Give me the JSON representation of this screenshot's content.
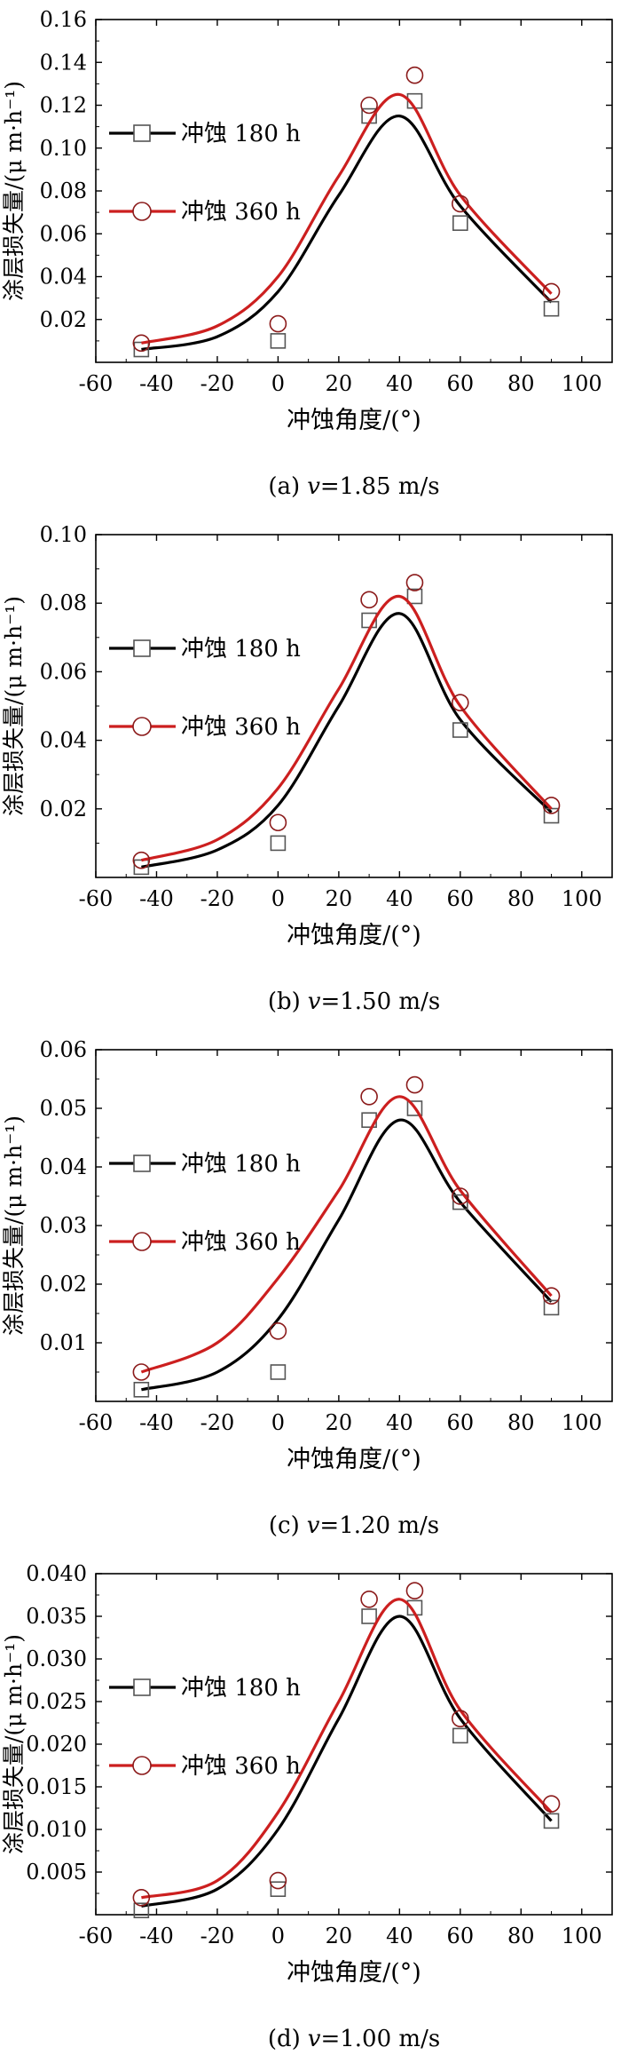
{
  "chart_data": [
    {
      "type": "scatter",
      "caption_prefix": "(a)",
      "caption_v": "v",
      "caption_rest": "=1.85 m/s",
      "xlabel": "冲蚀角度/(°)",
      "ylabel": "涂层损失量/(μ m·h⁻¹)",
      "xlim": [
        -60,
        110
      ],
      "ylim": [
        0,
        0.16
      ],
      "x_ticks": [
        -60,
        -40,
        -20,
        0,
        20,
        40,
        60,
        80,
        100
      ],
      "y_ticks": [
        0.02,
        0.04,
        0.06,
        0.08,
        0.1,
        0.12,
        0.14,
        0.16
      ],
      "y_tick_labels": [
        "0.02",
        "0.04",
        "0.06",
        "0.08",
        "0.10",
        "0.12",
        "0.14",
        "0.16"
      ],
      "legend_placement": "upper-left",
      "series": [
        {
          "name": "冲蚀  180 h",
          "marker": "square",
          "line_color": "#000000",
          "marker_color": "#555555",
          "points": [
            {
              "x": -45,
              "y": 0.006
            },
            {
              "x": 0,
              "y": 0.01
            },
            {
              "x": 30,
              "y": 0.115
            },
            {
              "x": 45,
              "y": 0.122
            },
            {
              "x": 60,
              "y": 0.065
            },
            {
              "x": 90,
              "y": 0.025
            }
          ],
          "fit": [
            {
              "x": -45,
              "y": 0.006
            },
            {
              "x": -20,
              "y": 0.012
            },
            {
              "x": 0,
              "y": 0.033
            },
            {
              "x": 20,
              "y": 0.078
            },
            {
              "x": 40,
              "y": 0.115
            },
            {
              "x": 60,
              "y": 0.073
            },
            {
              "x": 90,
              "y": 0.028
            }
          ]
        },
        {
          "name": "冲蚀  360 h",
          "marker": "circle",
          "line_color": "#cc1f1f",
          "marker_color": "#8b1a1a",
          "points": [
            {
              "x": -45,
              "y": 0.009
            },
            {
              "x": 0,
              "y": 0.018
            },
            {
              "x": 30,
              "y": 0.12
            },
            {
              "x": 45,
              "y": 0.134
            },
            {
              "x": 60,
              "y": 0.074
            },
            {
              "x": 90,
              "y": 0.033
            }
          ],
          "fit": [
            {
              "x": -45,
              "y": 0.009
            },
            {
              "x": -20,
              "y": 0.017
            },
            {
              "x": 0,
              "y": 0.04
            },
            {
              "x": 20,
              "y": 0.087
            },
            {
              "x": 40,
              "y": 0.125
            },
            {
              "x": 60,
              "y": 0.078
            },
            {
              "x": 90,
              "y": 0.032
            }
          ]
        }
      ]
    },
    {
      "type": "scatter",
      "caption_prefix": "(b)",
      "caption_v": "v",
      "caption_rest": "=1.50 m/s",
      "xlabel": "冲蚀角度/(°)",
      "ylabel": "涂层损失量/(μ m·h⁻¹)",
      "xlim": [
        -60,
        110
      ],
      "ylim": [
        0,
        0.1
      ],
      "x_ticks": [
        -60,
        -40,
        -20,
        0,
        20,
        40,
        60,
        80,
        100
      ],
      "y_ticks": [
        0.02,
        0.04,
        0.06,
        0.08,
        0.1
      ],
      "y_tick_labels": [
        "0.02",
        "0.04",
        "0.06",
        "0.08",
        "0.10"
      ],
      "legend_placement": "upper-left",
      "series": [
        {
          "name": "冲蚀  180 h",
          "marker": "square",
          "line_color": "#000000",
          "marker_color": "#555555",
          "points": [
            {
              "x": -45,
              "y": 0.003
            },
            {
              "x": 0,
              "y": 0.01
            },
            {
              "x": 30,
              "y": 0.075
            },
            {
              "x": 45,
              "y": 0.082
            },
            {
              "x": 60,
              "y": 0.043
            },
            {
              "x": 90,
              "y": 0.018
            }
          ],
          "fit": [
            {
              "x": -45,
              "y": 0.003
            },
            {
              "x": -20,
              "y": 0.008
            },
            {
              "x": 0,
              "y": 0.021
            },
            {
              "x": 20,
              "y": 0.05
            },
            {
              "x": 40,
              "y": 0.077
            },
            {
              "x": 60,
              "y": 0.046
            },
            {
              "x": 90,
              "y": 0.019
            }
          ]
        },
        {
          "name": "冲蚀  360 h",
          "marker": "circle",
          "line_color": "#cc1f1f",
          "marker_color": "#8b1a1a",
          "points": [
            {
              "x": -45,
              "y": 0.005
            },
            {
              "x": 0,
              "y": 0.016
            },
            {
              "x": 30,
              "y": 0.081
            },
            {
              "x": 45,
              "y": 0.086
            },
            {
              "x": 60,
              "y": 0.051
            },
            {
              "x": 90,
              "y": 0.021
            }
          ],
          "fit": [
            {
              "x": -45,
              "y": 0.005
            },
            {
              "x": -20,
              "y": 0.011
            },
            {
              "x": 0,
              "y": 0.026
            },
            {
              "x": 20,
              "y": 0.055
            },
            {
              "x": 40,
              "y": 0.082
            },
            {
              "x": 60,
              "y": 0.05
            },
            {
              "x": 90,
              "y": 0.02
            }
          ]
        }
      ]
    },
    {
      "type": "scatter",
      "caption_prefix": "(c)",
      "caption_v": "v",
      "caption_rest": "=1.20 m/s",
      "xlabel": "冲蚀角度/(°)",
      "ylabel": "涂层损失量/(μ m·h⁻¹)",
      "xlim": [
        -60,
        110
      ],
      "ylim": [
        0,
        0.06
      ],
      "x_ticks": [
        -60,
        -40,
        -20,
        0,
        20,
        40,
        60,
        80,
        100
      ],
      "y_ticks": [
        0.01,
        0.02,
        0.03,
        0.04,
        0.05,
        0.06
      ],
      "y_tick_labels": [
        "0.01",
        "0.02",
        "0.03",
        "0.04",
        "0.05",
        "0.06"
      ],
      "legend_placement": "upper-left",
      "series": [
        {
          "name": "冲蚀  180 h",
          "marker": "square",
          "line_color": "#000000",
          "marker_color": "#555555",
          "points": [
            {
              "x": -45,
              "y": 0.002
            },
            {
              "x": 0,
              "y": 0.005
            },
            {
              "x": 30,
              "y": 0.048
            },
            {
              "x": 45,
              "y": 0.05
            },
            {
              "x": 60,
              "y": 0.034
            },
            {
              "x": 90,
              "y": 0.016
            }
          ],
          "fit": [
            {
              "x": -45,
              "y": 0.002
            },
            {
              "x": -20,
              "y": 0.005
            },
            {
              "x": 0,
              "y": 0.014
            },
            {
              "x": 20,
              "y": 0.031
            },
            {
              "x": 40,
              "y": 0.048
            },
            {
              "x": 60,
              "y": 0.034
            },
            {
              "x": 90,
              "y": 0.017
            }
          ]
        },
        {
          "name": "冲蚀  360 h",
          "marker": "circle",
          "line_color": "#cc1f1f",
          "marker_color": "#8b1a1a",
          "points": [
            {
              "x": -45,
              "y": 0.005
            },
            {
              "x": 0,
              "y": 0.012
            },
            {
              "x": 30,
              "y": 0.052
            },
            {
              "x": 45,
              "y": 0.054
            },
            {
              "x": 60,
              "y": 0.035
            },
            {
              "x": 90,
              "y": 0.018
            }
          ],
          "fit": [
            {
              "x": -45,
              "y": 0.005
            },
            {
              "x": -20,
              "y": 0.01
            },
            {
              "x": 0,
              "y": 0.021
            },
            {
              "x": 20,
              "y": 0.036
            },
            {
              "x": 40,
              "y": 0.052
            },
            {
              "x": 60,
              "y": 0.036
            },
            {
              "x": 90,
              "y": 0.018
            }
          ]
        }
      ]
    },
    {
      "type": "scatter",
      "caption_prefix": "(d)",
      "caption_v": "v",
      "caption_rest": "=1.00 m/s",
      "xlabel": "冲蚀角度/(°)",
      "ylabel": "涂层损失量/(μ m·h⁻¹)",
      "xlim": [
        -60,
        110
      ],
      "ylim": [
        0,
        0.04
      ],
      "x_ticks": [
        -60,
        -40,
        -20,
        0,
        20,
        40,
        60,
        80,
        100
      ],
      "y_ticks": [
        0.005,
        0.01,
        0.015,
        0.02,
        0.025,
        0.03,
        0.035,
        0.04
      ],
      "y_tick_labels": [
        "0.005",
        "0.010",
        "0.015",
        "0.020",
        "0.025",
        "0.030",
        "0.035",
        "0.040"
      ],
      "legend_placement": "upper-left",
      "series": [
        {
          "name": "冲蚀  180 h",
          "marker": "square",
          "line_color": "#000000",
          "marker_color": "#555555",
          "points": [
            {
              "x": -45,
              "y": 0.0005
            },
            {
              "x": 0,
              "y": 0.003
            },
            {
              "x": 30,
              "y": 0.035
            },
            {
              "x": 45,
              "y": 0.036
            },
            {
              "x": 60,
              "y": 0.021
            },
            {
              "x": 90,
              "y": 0.011
            }
          ],
          "fit": [
            {
              "x": -45,
              "y": 0.001
            },
            {
              "x": -20,
              "y": 0.003
            },
            {
              "x": 0,
              "y": 0.01
            },
            {
              "x": 20,
              "y": 0.023
            },
            {
              "x": 40,
              "y": 0.035
            },
            {
              "x": 60,
              "y": 0.023
            },
            {
              "x": 90,
              "y": 0.011
            }
          ]
        },
        {
          "name": "冲蚀  360 h",
          "marker": "circle",
          "line_color": "#cc1f1f",
          "marker_color": "#8b1a1a",
          "points": [
            {
              "x": -45,
              "y": 0.002
            },
            {
              "x": 0,
              "y": 0.004
            },
            {
              "x": 30,
              "y": 0.037
            },
            {
              "x": 45,
              "y": 0.038
            },
            {
              "x": 60,
              "y": 0.023
            },
            {
              "x": 90,
              "y": 0.013
            }
          ],
          "fit": [
            {
              "x": -45,
              "y": 0.002
            },
            {
              "x": -20,
              "y": 0.004
            },
            {
              "x": 0,
              "y": 0.012
            },
            {
              "x": 20,
              "y": 0.025
            },
            {
              "x": 40,
              "y": 0.037
            },
            {
              "x": 60,
              "y": 0.024
            },
            {
              "x": 90,
              "y": 0.012
            }
          ]
        }
      ]
    }
  ]
}
